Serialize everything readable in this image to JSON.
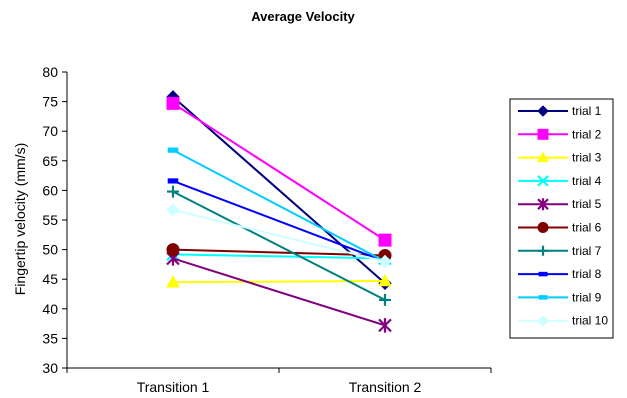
{
  "chart_data": {
    "type": "line",
    "title": "Average Velocity",
    "xlabel": "",
    "ylabel": "Fingertip velocity (mm/s)",
    "categories": [
      "Transition 1",
      "Transition 2"
    ],
    "ylim": [
      30,
      80
    ],
    "yticks": [
      30,
      35,
      40,
      45,
      50,
      55,
      60,
      65,
      70,
      75,
      80
    ],
    "legend_position": "right",
    "grid": false,
    "series": [
      {
        "name": "trial 1",
        "values": [
          75.8,
          44.3
        ],
        "color": "#000080",
        "marker": "diamond"
      },
      {
        "name": "trial 2",
        "values": [
          74.7,
          51.6
        ],
        "color": "#ff00ff",
        "marker": "square"
      },
      {
        "name": "trial 3",
        "values": [
          44.5,
          44.7
        ],
        "color": "#ffff00",
        "marker": "triangle"
      },
      {
        "name": "trial 4",
        "values": [
          49.2,
          48.5
        ],
        "color": "#00ffff",
        "marker": "x"
      },
      {
        "name": "trial 5",
        "values": [
          48.5,
          37.2
        ],
        "color": "#800080",
        "marker": "asterisk"
      },
      {
        "name": "trial 6",
        "values": [
          50.0,
          49.0
        ],
        "color": "#800000",
        "marker": "circle"
      },
      {
        "name": "trial 7",
        "values": [
          59.8,
          41.5
        ],
        "color": "#008080",
        "marker": "plus"
      },
      {
        "name": "trial 8",
        "values": [
          61.6,
          48.0
        ],
        "color": "#0000ff",
        "marker": "dash"
      },
      {
        "name": "trial 9",
        "values": [
          66.8,
          48.0
        ],
        "color": "#00ccff",
        "marker": "dash"
      },
      {
        "name": "trial 10",
        "values": [
          56.7,
          48.0
        ],
        "color": "#ccffff",
        "marker": "diamond"
      }
    ]
  }
}
